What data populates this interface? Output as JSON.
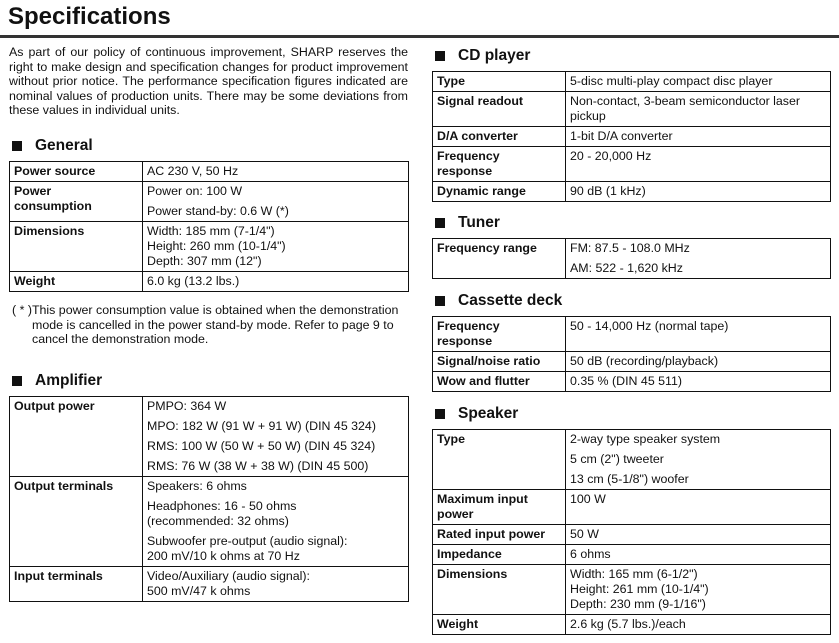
{
  "title": "Specifications",
  "intro": "As part of our policy of continuous improvement, SHARP reserves the right to make design and specification changes for product improvement without prior notice. The performance specification figures indicated are nominal values of production units. There may be some deviations from these values in individual units.",
  "footnote": "( * )This power consumption value is obtained when the demonstration mode is cancelled in the power stand-by mode. Refer to page 9 to cancel the demonstration mode.",
  "sections": {
    "general": {
      "heading": "General",
      "rows": [
        {
          "label": "Power source",
          "values": [
            "AC 230 V, 50 Hz"
          ]
        },
        {
          "label": "Power\nconsumption",
          "values": [
            "Power on: 100 W",
            "Power stand-by: 0.6 W (*)"
          ]
        },
        {
          "label": "Dimensions",
          "values": [
            "Width: 185 mm (7-1/4\")\nHeight: 260 mm (10-1/4\")\nDepth: 307 mm (12\")"
          ]
        },
        {
          "label": "Weight",
          "values": [
            "6.0 kg (13.2 lbs.)"
          ]
        }
      ]
    },
    "amplifier": {
      "heading": "Amplifier",
      "rows": [
        {
          "label": "Output power",
          "values": [
            "PMPO: 364 W",
            "MPO: 182 W (91 W + 91 W) (DIN 45 324)",
            "RMS: 100 W (50 W + 50 W) (DIN 45 324)",
            "RMS: 76 W (38 W + 38 W) (DIN 45 500)"
          ]
        },
        {
          "label": "Output terminals",
          "values": [
            "Speakers: 6 ohms",
            "Headphones: 16 - 50 ohms\n(recommended: 32 ohms)",
            "Subwoofer pre-output (audio signal):\n200 mV/10 k ohms at 70 Hz"
          ]
        },
        {
          "label": "Input terminals",
          "values": [
            "Video/Auxiliary (audio signal):\n500 mV/47 k ohms"
          ]
        }
      ]
    },
    "cd": {
      "heading": "CD player",
      "rows": [
        {
          "label": "Type",
          "values": [
            "5-disc multi-play compact disc player"
          ]
        },
        {
          "label": "Signal readout",
          "values": [
            "Non-contact, 3-beam semiconductor laser pickup"
          ]
        },
        {
          "label": "D/A converter",
          "values": [
            "1-bit D/A converter"
          ]
        },
        {
          "label": "Frequency\nresponse",
          "values": [
            "20 - 20,000 Hz"
          ]
        },
        {
          "label": "Dynamic range",
          "values": [
            "90 dB (1 kHz)"
          ]
        }
      ]
    },
    "tuner": {
      "heading": "Tuner",
      "rows": [
        {
          "label": "Frequency range",
          "values": [
            "FM: 87.5 - 108.0 MHz",
            "AM: 522 - 1,620 kHz"
          ]
        }
      ]
    },
    "cassette": {
      "heading": "Cassette deck",
      "rows": [
        {
          "label": "Frequency\nresponse",
          "values": [
            "50 - 14,000 Hz (normal tape)"
          ]
        },
        {
          "label": "Signal/noise ratio",
          "values": [
            "50 dB (recording/playback)"
          ]
        },
        {
          "label": "Wow and flutter",
          "values": [
            "0.35 % (DIN 45 511)"
          ]
        }
      ]
    },
    "speaker": {
      "heading": "Speaker",
      "rows": [
        {
          "label": "Type",
          "values": [
            "2-way type speaker system",
            "5 cm (2\") tweeter",
            "13 cm (5-1/8\") woofer"
          ]
        },
        {
          "label": "Maximum input\npower",
          "values": [
            "100 W"
          ]
        },
        {
          "label": "Rated input power",
          "values": [
            "50 W"
          ]
        },
        {
          "label": "Impedance",
          "values": [
            "6 ohms"
          ]
        },
        {
          "label": "Dimensions",
          "values": [
            "Width: 165 mm (6-1/2\")\nHeight: 261 mm (10-1/4\")\nDepth: 230 mm (9-1/16\")"
          ]
        },
        {
          "label": "Weight",
          "values": [
            "2.6 kg (5.7 lbs.)/each"
          ]
        }
      ]
    }
  }
}
